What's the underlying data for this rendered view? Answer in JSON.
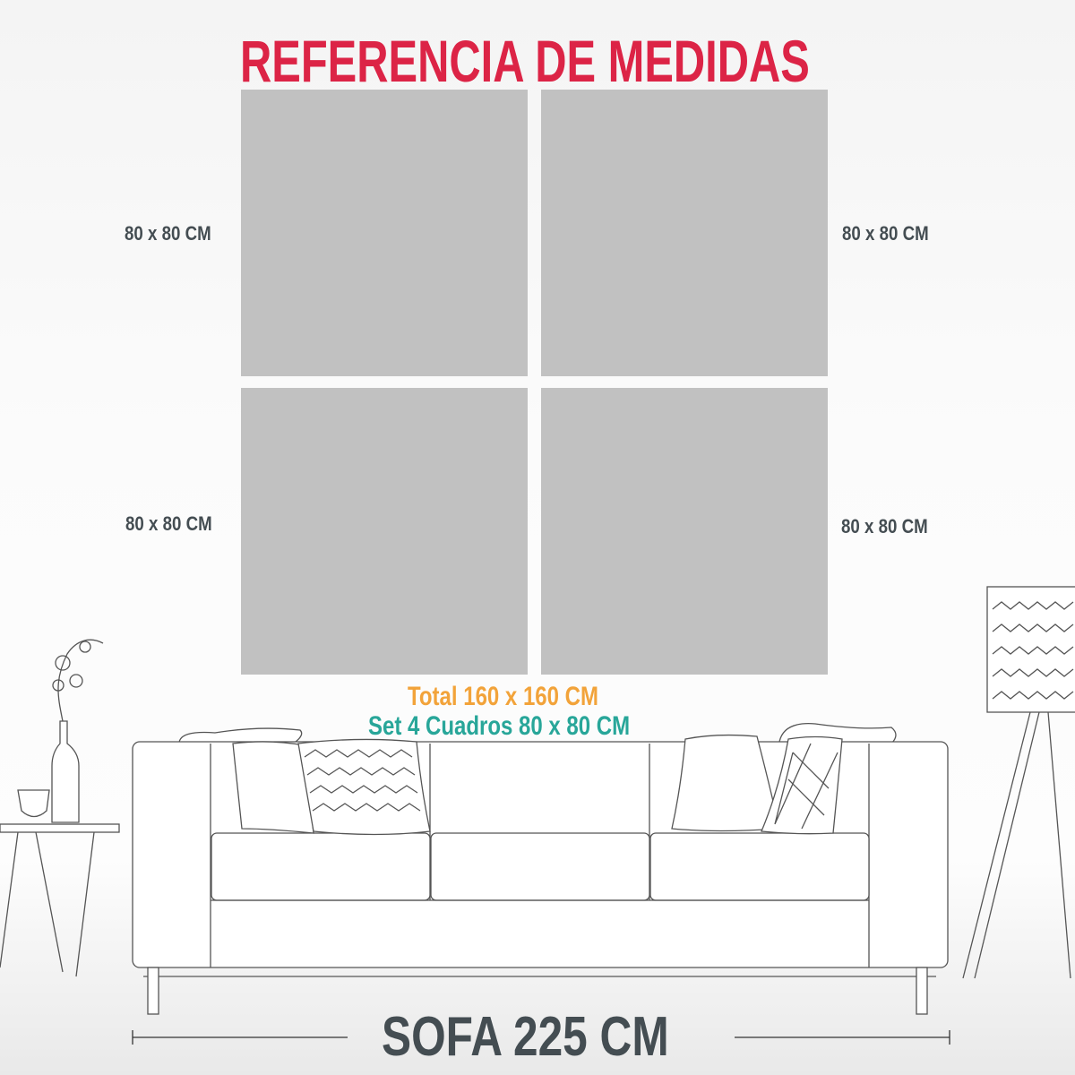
{
  "title": "REFERENCIA DE MEDIDAS",
  "panels": [
    {
      "label": "80 x 80 CM"
    },
    {
      "label": "80 x 80 CM"
    },
    {
      "label": "80 x 80 CM"
    },
    {
      "label": "80 x 80 CM"
    }
  ],
  "total_label": "Total 160 x 160 CM",
  "set_label": "Set 4 Cuadros 80 x 80 CM",
  "sofa_label": "SOFA 225 CM",
  "colors": {
    "title": "#dc2446",
    "total": "#f2a33a",
    "set": "#28a699",
    "text": "#444d52",
    "panel": "#c1c1c1"
  }
}
